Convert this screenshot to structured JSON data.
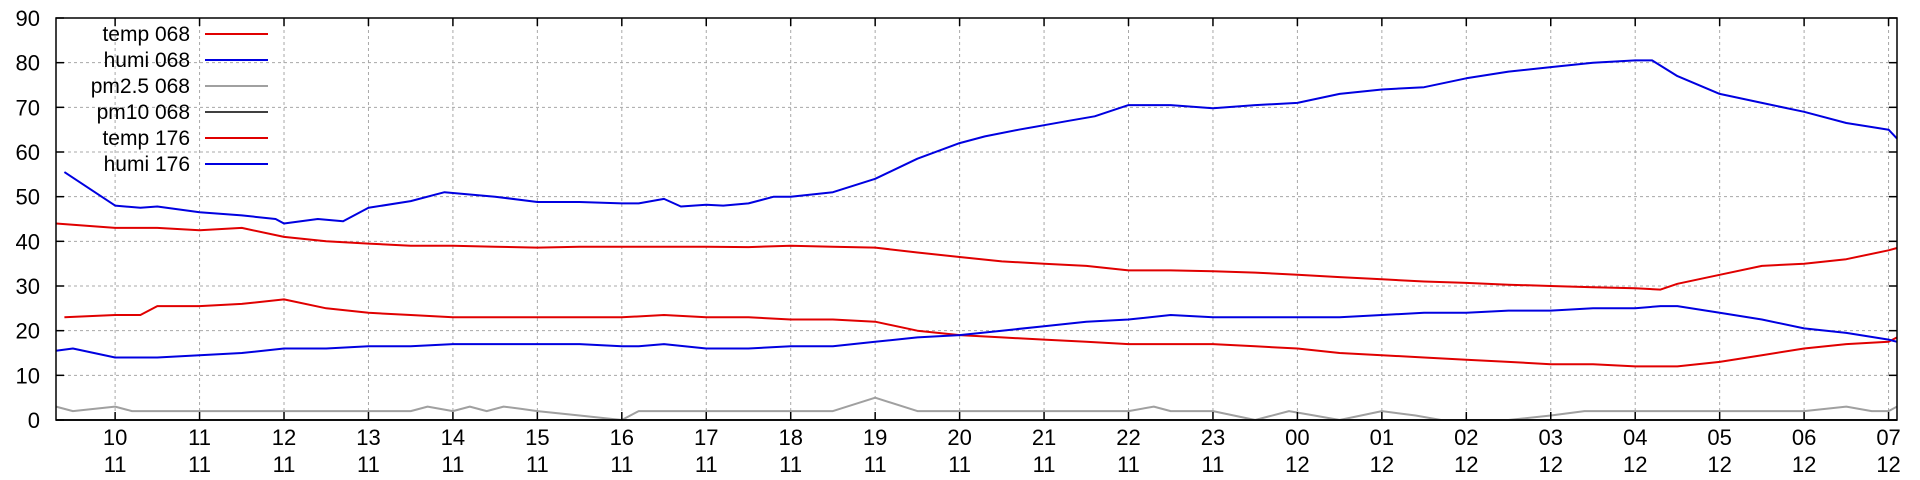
{
  "chart_data": {
    "type": "line",
    "grid": true,
    "legend_placement": "top-left",
    "ylim": [
      0,
      90
    ],
    "y_ticks": [
      "0",
      "10",
      "20",
      "30",
      "40",
      "50",
      "60",
      "70",
      "80",
      "90"
    ],
    "x_ticks": [
      {
        "day": "10",
        "month": "11"
      },
      {
        "day": "11",
        "month": "11"
      },
      {
        "day": "12",
        "month": "11"
      },
      {
        "day": "13",
        "month": "11"
      },
      {
        "day": "14",
        "month": "11"
      },
      {
        "day": "15",
        "month": "11"
      },
      {
        "day": "16",
        "month": "11"
      },
      {
        "day": "17",
        "month": "11"
      },
      {
        "day": "18",
        "month": "11"
      },
      {
        "day": "19",
        "month": "11"
      },
      {
        "day": "20",
        "month": "11"
      },
      {
        "day": "21",
        "month": "11"
      },
      {
        "day": "22",
        "month": "11"
      },
      {
        "day": "23",
        "month": "11"
      },
      {
        "day": "00",
        "month": "12"
      },
      {
        "day": "01",
        "month": "12"
      },
      {
        "day": "02",
        "month": "12"
      },
      {
        "day": "03",
        "month": "12"
      },
      {
        "day": "04",
        "month": "12"
      },
      {
        "day": "05",
        "month": "12"
      },
      {
        "day": "06",
        "month": "12"
      },
      {
        "day": "07",
        "month": "12"
      }
    ],
    "x_tick_positions": [
      10,
      11,
      12,
      13,
      14,
      15,
      16,
      17,
      18,
      19,
      20,
      21,
      22,
      23,
      24,
      25,
      26,
      27,
      28,
      29,
      30,
      31
    ],
    "xlim": [
      9.3,
      31.1
    ],
    "series": [
      {
        "name": "temp 068",
        "color": "#e00000",
        "x": [
          9.3,
          10,
          10.5,
          11,
          11.5,
          12,
          12.5,
          13,
          13.5,
          14,
          14.5,
          15,
          15.5,
          16,
          16.5,
          17,
          17.5,
          18,
          18.5,
          19,
          19.5,
          20,
          20.5,
          21,
          21.5,
          22,
          22.5,
          23,
          23.5,
          24,
          24.5,
          25,
          25.5,
          26,
          26.5,
          27,
          27.5,
          28,
          28.3,
          28.5,
          29,
          29.5,
          30,
          30.5,
          31,
          31.1
        ],
        "y": [
          44,
          43,
          43,
          42.5,
          43,
          41,
          40,
          39.5,
          39,
          39,
          38.8,
          38.6,
          38.8,
          38.8,
          38.8,
          38.8,
          38.7,
          39,
          38.8,
          38.6,
          37.5,
          36.5,
          35.5,
          35,
          34.5,
          33.5,
          33.5,
          33.3,
          33,
          32.5,
          32,
          31.5,
          31,
          30.7,
          30.3,
          30,
          29.7,
          29.5,
          29.2,
          30.5,
          32.5,
          34.5,
          35,
          36,
          38,
          38.5
        ]
      },
      {
        "name": "humi 068",
        "color": "#0000e0",
        "x": [
          9.4,
          10,
          10.3,
          10.5,
          11,
          11.5,
          11.9,
          12,
          12.2,
          12.4,
          12.7,
          13,
          13.5,
          13.9,
          14.5,
          15,
          15.5,
          16,
          16.2,
          16.5,
          16.7,
          17,
          17.2,
          17.5,
          17.8,
          18,
          18.5,
          19,
          19.5,
          20,
          20.3,
          20.7,
          21,
          21.3,
          21.6,
          22,
          22.5,
          23,
          23.5,
          24,
          24.5,
          25,
          25.5,
          26,
          26.5,
          27,
          27.5,
          28,
          28.2,
          28.5,
          29,
          29.5,
          30,
          30.5,
          31,
          31.1
        ],
        "y": [
          55.5,
          48,
          47.5,
          47.8,
          46.5,
          45.8,
          45,
          44,
          44.5,
          45,
          44.5,
          47.5,
          49,
          51,
          50,
          48.8,
          48.8,
          48.5,
          48.5,
          49.5,
          47.8,
          48.2,
          48,
          48.5,
          50,
          50,
          51,
          54,
          58.5,
          62,
          63.5,
          65,
          66,
          67,
          68,
          70.5,
          70.5,
          69.8,
          70.5,
          71,
          73,
          74,
          74.5,
          76.5,
          78,
          79,
          80,
          80.5,
          80.5,
          77,
          73,
          71,
          69,
          66.5,
          65,
          63
        ]
      },
      {
        "name": "pm2.5 068",
        "color": "#a0a0a0",
        "x": [
          9.3,
          9.5,
          10,
          10.2,
          11,
          12,
          13,
          13.5,
          13.7,
          14,
          14.2,
          14.4,
          14.6,
          14.8,
          15,
          15.5,
          16,
          16.2,
          16.6,
          17,
          18,
          18.5,
          19,
          19.5,
          20,
          21,
          22,
          22.3,
          22.5,
          23,
          23.5,
          23.9,
          24.2,
          24.5,
          25,
          25.4,
          25.7,
          26,
          26.5,
          27,
          27.4,
          28,
          29,
          30,
          30.5,
          30.8,
          31,
          31.1
        ],
        "y": [
          3,
          2,
          3,
          2,
          2,
          2,
          2,
          2,
          3,
          2,
          3,
          2,
          3,
          2.5,
          2,
          1,
          0,
          2,
          2,
          2,
          2,
          2,
          5,
          2,
          2,
          2,
          2,
          3,
          2,
          2,
          0,
          2,
          1,
          0,
          2,
          1,
          0,
          0,
          0,
          1,
          2,
          2,
          2,
          2,
          3,
          2,
          2,
          3
        ]
      },
      {
        "name": "pm10 068",
        "color": "#404040",
        "x": [
          9.3,
          31.1
        ],
        "y": [
          0,
          0
        ]
      },
      {
        "name": "temp 176",
        "color": "#e00000",
        "x": [
          9.4,
          10,
          10.3,
          10.5,
          11,
          11.5,
          12,
          12.5,
          13,
          13.5,
          14,
          14.5,
          15,
          15.5,
          16,
          16.5,
          17,
          17.5,
          18,
          18.5,
          19,
          19.5,
          20,
          20.5,
          21,
          21.5,
          22,
          22.5,
          23,
          23.5,
          24,
          24.5,
          25,
          25.5,
          26,
          26.5,
          27,
          27.5,
          28,
          28.5,
          29,
          29.5,
          30,
          30.5,
          31,
          31.1
        ],
        "y": [
          23,
          23.5,
          23.5,
          25.5,
          25.5,
          26,
          27,
          25,
          24,
          23.5,
          23,
          23,
          23,
          23,
          23,
          23.5,
          23,
          23,
          22.5,
          22.5,
          22,
          20,
          19,
          18.5,
          18,
          17.5,
          17,
          17,
          17,
          16.5,
          16,
          15,
          14.5,
          14,
          13.5,
          13,
          12.5,
          12.5,
          12,
          12,
          13,
          14.5,
          16,
          17,
          17.5,
          18.5
        ]
      },
      {
        "name": "humi 176",
        "color": "#0000e0",
        "x": [
          9.3,
          9.5,
          10,
          10.5,
          11,
          11.5,
          12,
          12.5,
          13,
          13.5,
          14,
          14.5,
          15,
          15.5,
          16,
          16.2,
          16.5,
          17,
          17.5,
          18,
          18.5,
          19,
          19.5,
          20,
          20.5,
          21,
          21.5,
          22,
          22.5,
          23,
          23.5,
          24,
          24.5,
          25,
          25.5,
          26,
          26.5,
          27,
          27.5,
          28,
          28.3,
          28.5,
          29,
          29.5,
          30,
          30.5,
          31,
          31.1
        ],
        "y": [
          15.5,
          16,
          14,
          14,
          14.5,
          15,
          16,
          16,
          16.5,
          16.5,
          17,
          17,
          17,
          17,
          16.5,
          16.5,
          17,
          16,
          16,
          16.5,
          16.5,
          17.5,
          18.5,
          19,
          20,
          21,
          22,
          22.5,
          23.5,
          23,
          23,
          23,
          23,
          23.5,
          24,
          24,
          24.5,
          24.5,
          25,
          25,
          25.5,
          25.5,
          24,
          22.5,
          20.5,
          19.5,
          18,
          17.5
        ]
      }
    ]
  }
}
